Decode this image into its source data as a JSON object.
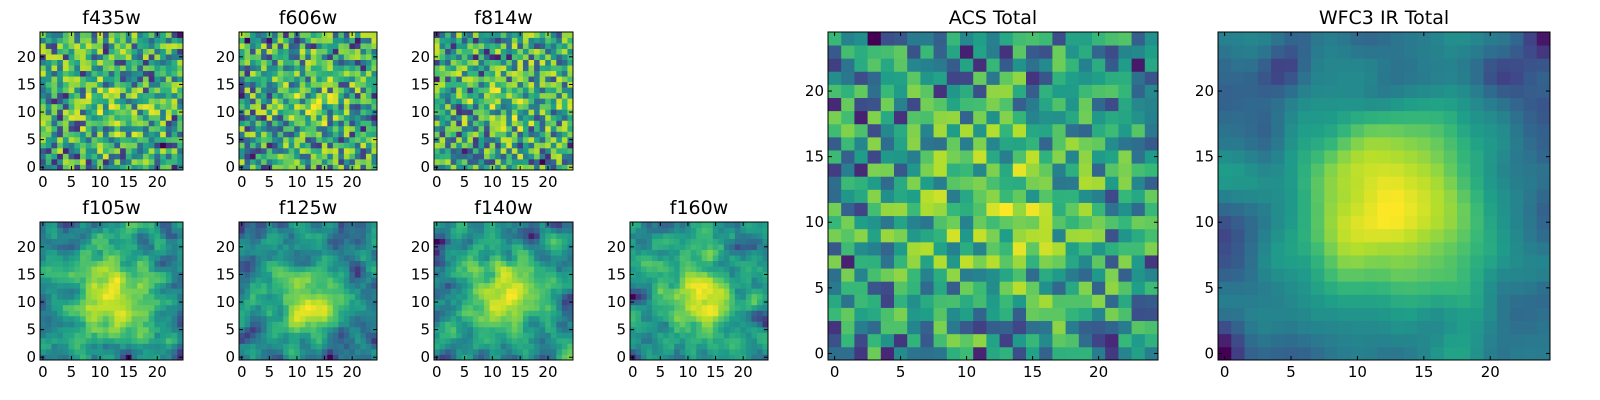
{
  "chart_data": [
    {
      "type": "heatmap",
      "title": "f435w",
      "grid_size": 25,
      "xlim": [
        0,
        24
      ],
      "ylim": [
        0,
        24
      ],
      "xticks": [
        0,
        5,
        10,
        15,
        20
      ],
      "yticks": [
        0,
        5,
        10,
        15,
        20
      ],
      "colormap": "viridis",
      "blob": 0.15,
      "smooth": 0,
      "seed": 11
    },
    {
      "type": "heatmap",
      "title": "f606w",
      "grid_size": 25,
      "xlim": [
        0,
        24
      ],
      "ylim": [
        0,
        24
      ],
      "xticks": [
        0,
        5,
        10,
        15,
        20
      ],
      "yticks": [
        0,
        5,
        10,
        15,
        20
      ],
      "colormap": "viridis",
      "blob": 0.15,
      "smooth": 0,
      "seed": 22
    },
    {
      "type": "heatmap",
      "title": "f814w",
      "grid_size": 25,
      "xlim": [
        0,
        24
      ],
      "ylim": [
        0,
        24
      ],
      "xticks": [
        0,
        5,
        10,
        15,
        20
      ],
      "yticks": [
        0,
        5,
        10,
        15,
        20
      ],
      "colormap": "viridis",
      "blob": 0.15,
      "smooth": 0,
      "seed": 33
    },
    {
      "type": "heatmap",
      "title": "f105w",
      "grid_size": 25,
      "xlim": [
        0,
        24
      ],
      "ylim": [
        0,
        24
      ],
      "xticks": [
        0,
        5,
        10,
        15,
        20
      ],
      "yticks": [
        0,
        5,
        10,
        15,
        20
      ],
      "colormap": "viridis",
      "blob": 0.35,
      "smooth": 1,
      "seed": 44
    },
    {
      "type": "heatmap",
      "title": "f125w",
      "grid_size": 25,
      "xlim": [
        0,
        24
      ],
      "ylim": [
        0,
        24
      ],
      "xticks": [
        0,
        5,
        10,
        15,
        20
      ],
      "yticks": [
        0,
        5,
        10,
        15,
        20
      ],
      "colormap": "viridis",
      "blob": 0.35,
      "smooth": 1,
      "seed": 55
    },
    {
      "type": "heatmap",
      "title": "f140w",
      "grid_size": 25,
      "xlim": [
        0,
        24
      ],
      "ylim": [
        0,
        24
      ],
      "xticks": [
        0,
        5,
        10,
        15,
        20
      ],
      "yticks": [
        0,
        5,
        10,
        15,
        20
      ],
      "colormap": "viridis",
      "blob": 0.35,
      "smooth": 1,
      "seed": 66
    },
    {
      "type": "heatmap",
      "title": "f160w",
      "grid_size": 25,
      "xlim": [
        0,
        24
      ],
      "ylim": [
        0,
        24
      ],
      "xticks": [
        0,
        5,
        10,
        15,
        20
      ],
      "yticks": [
        0,
        5,
        10,
        15,
        20
      ],
      "colormap": "viridis",
      "blob": 0.35,
      "smooth": 1,
      "seed": 77
    },
    {
      "type": "heatmap",
      "title": "ACS Total",
      "grid_size": 25,
      "xlim": [
        0,
        24
      ],
      "ylim": [
        0,
        24
      ],
      "xticks": [
        0,
        5,
        10,
        15,
        20
      ],
      "yticks": [
        0,
        5,
        10,
        15,
        20
      ],
      "colormap": "viridis",
      "blob": 0.3,
      "smooth": 0,
      "seed": 88
    },
    {
      "type": "heatmap",
      "title": "WFC3 IR Total",
      "grid_size": 25,
      "xlim": [
        0,
        24
      ],
      "ylim": [
        0,
        24
      ],
      "xticks": [
        0,
        5,
        10,
        15,
        20
      ],
      "yticks": [
        0,
        5,
        10,
        15,
        20
      ],
      "colormap": "viridis",
      "blob": 0.55,
      "smooth": 2,
      "seed": 99
    }
  ]
}
